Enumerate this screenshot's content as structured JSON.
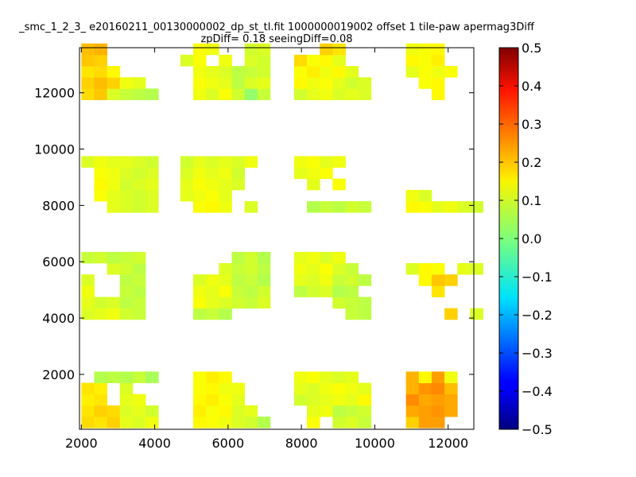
{
  "chart_data": {
    "type": "heatmap",
    "title_lines": [
      "_smc_1_2_3_ e20160211_00130000002_dp_st_tl.fit 1000000019002 offset 1 tile-paw apermag3Diff",
      "zpDiff= 0.18 seeingDiff=0.08"
    ],
    "xlabel": "",
    "ylabel": "",
    "xlim": [
      1950,
      12700
    ],
    "ylim": [
      50,
      13600
    ],
    "xticks": [
      2000,
      4000,
      6000,
      8000,
      10000,
      12000
    ],
    "xtick_labels": [
      "2000",
      "4000",
      "6000",
      "8000",
      "10000",
      "12000"
    ],
    "yticks": [
      2000,
      4000,
      6000,
      8000,
      10000,
      12000
    ],
    "ytick_labels": [
      "2000",
      "4000",
      "6000",
      "8000",
      "10000",
      "12000"
    ],
    "colorbar": {
      "colormap": "jet",
      "vmin": -0.5,
      "vmax": 0.5,
      "ticks": [
        0.5,
        0.4,
        0.3,
        0.2,
        0.1,
        0.0,
        -0.1,
        -0.2,
        -0.3,
        -0.4,
        -0.5
      ],
      "tick_labels": [
        "0.5",
        "0.4",
        "0.3",
        "0.2",
        "0.1",
        "0.0",
        "−0.1",
        "−0.2",
        "−0.3",
        "−0.4",
        "−0.5"
      ]
    },
    "grid": false,
    "cell_size": [
      350,
      400
    ],
    "tiles": [
      {
        "xs": [
          2000,
          2350,
          2700,
          3050,
          3400,
          3750
        ],
        "y0": 100,
        "rows": [
          [
            0.16,
            0.15,
            0.17,
            0.1,
            0.09,
            0.11
          ],
          [
            0.15,
            0.17,
            0.16,
            0.09,
            0.1,
            0.08
          ],
          [
            0.14,
            0.15,
            null,
            0.1,
            0.11,
            null
          ],
          [
            0.15,
            0.14,
            null,
            0.09,
            null,
            null
          ],
          [
            null,
            0.05,
            0.06,
            0.05,
            0.07,
            0.04
          ]
        ]
      },
      {
        "xs": [
          5050,
          5400,
          5750,
          6100,
          6450,
          6800
        ],
        "y0": 100,
        "rows": [
          [
            0.13,
            0.12,
            0.11,
            0.09,
            0.08,
            0.05
          ],
          [
            0.14,
            0.12,
            0.13,
            0.09,
            0.1,
            null
          ],
          [
            0.13,
            0.14,
            0.12,
            0.1,
            null,
            null
          ],
          [
            0.12,
            0.13,
            0.11,
            0.11,
            null,
            null
          ],
          [
            0.12,
            0.14,
            0.13,
            null,
            null,
            null
          ]
        ]
      },
      {
        "xs": [
          7800,
          8150,
          8500,
          8850,
          9200,
          9550
        ],
        "y0": 100,
        "rows": [
          [
            null,
            0.12,
            null,
            0.08,
            0.09,
            0.07
          ],
          [
            null,
            0.1,
            0.11,
            0.06,
            0.07,
            0.08
          ],
          [
            0.08,
            0.09,
            0.1,
            0.11,
            0.1,
            0.13
          ],
          [
            0.1,
            0.09,
            0.11,
            0.12,
            0.11,
            0.1
          ],
          [
            0.11,
            0.12,
            0.1,
            0.09,
            0.1,
            null
          ]
        ]
      },
      {
        "xs": [
          10850,
          11200,
          11550,
          11900
        ],
        "y0": 100,
        "rows": [
          [
            0.17,
            0.22,
            0.22,
            null
          ],
          [
            0.21,
            0.22,
            0.23,
            0.21
          ],
          [
            0.24,
            0.21,
            0.22,
            0.21
          ],
          [
            0.2,
            0.23,
            0.24,
            0.19
          ],
          [
            0.2,
            0.13,
            0.22,
            0.11
          ]
        ]
      },
      {
        "xs": [
          2000,
          2350,
          2700,
          3050,
          3400
        ],
        "y0": 3950,
        "rows": [
          [
            0.09,
            0.1,
            0.11,
            0.08,
            0.07
          ],
          [
            0.1,
            0.08,
            0.09,
            0.06,
            0.07
          ],
          [
            0.11,
            null,
            null,
            0.07,
            0.06
          ],
          [
            0.09,
            null,
            null,
            0.06,
            0.07
          ],
          [
            null,
            null,
            0.09,
            0.08,
            0.06
          ],
          [
            0.07,
            0.08,
            0.06,
            0.07,
            0.08
          ]
        ]
      },
      {
        "xs": [
          5050,
          5400,
          5750,
          6100,
          6450,
          6800
        ],
        "y0": 3950,
        "rows": [
          [
            0.06,
            0.07,
            0.05,
            null,
            null,
            null
          ],
          [
            0.12,
            0.1,
            0.09,
            0.08,
            0.07,
            0.09
          ],
          [
            0.11,
            0.1,
            0.12,
            0.07,
            0.06,
            0.08
          ],
          [
            0.09,
            0.11,
            0.1,
            0.06,
            0.07,
            0.05
          ],
          [
            null,
            null,
            0.09,
            0.07,
            0.08,
            0.06
          ],
          [
            null,
            null,
            null,
            0.06,
            0.08,
            0.05
          ]
        ]
      },
      {
        "xs": [
          7800,
          8150,
          8500,
          8850,
          9200,
          9550
        ],
        "y0": 3950,
        "rows": [
          [
            null,
            null,
            null,
            null,
            0.07,
            0.06
          ],
          [
            null,
            null,
            null,
            0.08,
            0.07,
            0.06
          ],
          [
            0.06,
            0.08,
            0.09,
            0.05,
            0.06,
            null
          ],
          [
            0.1,
            0.09,
            0.11,
            0.07,
            0.08,
            0.06
          ],
          [
            0.11,
            0.1,
            0.12,
            0.09,
            0.07,
            null
          ],
          [
            0.1,
            0.11,
            0.09,
            0.11,
            null,
            null
          ]
        ]
      },
      {
        "xs": [
          10850,
          11200,
          11550,
          11900,
          12250,
          12600
        ],
        "y0": 3950,
        "rows": [
          [
            null,
            null,
            null,
            0.17,
            null,
            0.09
          ],
          [
            null,
            null,
            null,
            null,
            null,
            null
          ],
          [
            null,
            null,
            0.15,
            null,
            null,
            null
          ],
          [
            null,
            0.13,
            0.18,
            0.17,
            null,
            null
          ],
          [
            0.09,
            0.13,
            0.12,
            null,
            0.1,
            0.09
          ]
        ]
      },
      {
        "xs": [
          2000,
          2350,
          2700,
          3050,
          3400,
          3750
        ],
        "y0": 7750,
        "rows": [
          [
            null,
            null,
            0.1,
            0.09,
            0.08,
            0.09
          ],
          [
            null,
            0.12,
            0.1,
            0.09,
            0.08,
            0.09
          ],
          [
            null,
            0.13,
            0.11,
            0.08,
            0.09,
            0.1
          ],
          [
            null,
            0.12,
            0.11,
            0.09,
            0.08,
            0.09
          ],
          [
            0.09,
            0.11,
            0.1,
            0.1,
            0.09,
            0.08
          ]
        ]
      },
      {
        "xs": [
          4700,
          5050,
          5400,
          5750,
          6100,
          6450
        ],
        "y0": 7750,
        "rows": [
          [
            null,
            0.12,
            0.13,
            0.11,
            null,
            0.09
          ],
          [
            0.1,
            0.11,
            0.12,
            0.1,
            null,
            null
          ],
          [
            0.1,
            0.12,
            0.11,
            0.1,
            0.09,
            null
          ],
          [
            0.09,
            0.11,
            0.1,
            0.11,
            0.08,
            null
          ],
          [
            0.08,
            0.1,
            0.09,
            0.1,
            0.09,
            0.11
          ]
        ]
      },
      {
        "xs": [
          7800,
          8150,
          8500,
          8850,
          9200,
          9550
        ],
        "y0": 7750,
        "rows": [
          [
            null,
            0.05,
            0.07,
            0.06,
            0.08,
            0.07
          ],
          [
            null,
            null,
            null,
            null,
            null,
            null
          ],
          [
            null,
            0.1,
            null,
            0.12,
            null,
            null
          ],
          [
            0.1,
            0.11,
            0.12,
            null,
            null,
            null
          ],
          [
            0.11,
            0.12,
            0.1,
            0.11,
            null,
            null
          ]
        ]
      },
      {
        "xs": [
          10850,
          11200,
          11550,
          11900,
          12250,
          12600
        ],
        "y0": 7750,
        "rows": [
          [
            0.13,
            0.12,
            0.1,
            0.11,
            0.09,
            0.08
          ],
          [
            0.11,
            0.09,
            null,
            null,
            null,
            null
          ]
        ]
      },
      {
        "xs": [
          2000,
          2350,
          2700,
          3050,
          3400,
          3750
        ],
        "y0": 11750,
        "rows": [
          [
            0.16,
            0.18,
            0.09,
            0.07,
            0.06,
            0.05
          ],
          [
            0.17,
            0.19,
            0.17,
            0.11,
            0.1,
            null
          ],
          [
            0.15,
            0.16,
            0.13,
            null,
            null,
            null
          ],
          [
            0.18,
            0.17,
            null,
            null,
            null,
            null
          ],
          [
            0.19,
            0.2,
            null,
            null,
            null,
            null
          ]
        ]
      },
      {
        "xs": [
          4700,
          5050,
          5400,
          5750,
          6100,
          6450,
          6800
        ],
        "y0": 11750,
        "rows": [
          [
            null,
            0.11,
            0.09,
            0.12,
            0.08,
            0.02,
            0.07
          ],
          [
            null,
            0.12,
            0.11,
            0.1,
            0.06,
            0.09,
            0.1
          ],
          [
            null,
            0.11,
            0.1,
            0.09,
            0.06,
            0.07,
            0.08
          ],
          [
            0.09,
            0.12,
            null,
            0.11,
            null,
            0.09,
            0.08
          ],
          [
            null,
            0.12,
            0.11,
            null,
            null,
            0.08,
            0.09
          ]
        ]
      },
      {
        "xs": [
          7800,
          8150,
          8500,
          8850,
          9200,
          9550
        ],
        "y0": 11750,
        "rows": [
          [
            0.08,
            0.1,
            0.11,
            0.09,
            0.1,
            0.09
          ],
          [
            0.13,
            0.11,
            0.12,
            0.1,
            0.08,
            0.09
          ],
          [
            0.12,
            0.14,
            0.11,
            0.13,
            0.1,
            null
          ],
          [
            0.16,
            0.12,
            0.13,
            0.1,
            null,
            null
          ],
          [
            null,
            null,
            0.17,
            0.15,
            null,
            null
          ]
        ]
      },
      {
        "xs": [
          10850,
          11200,
          11550,
          11900
        ],
        "y0": 11750,
        "rows": [
          [
            null,
            null,
            0.13,
            null
          ],
          [
            null,
            0.12,
            0.13,
            null
          ],
          [
            0.1,
            0.12,
            0.11,
            0.12
          ],
          [
            0.13,
            0.12,
            0.14,
            null
          ],
          [
            0.11,
            0.12,
            0.13,
            null
          ]
        ]
      }
    ]
  }
}
